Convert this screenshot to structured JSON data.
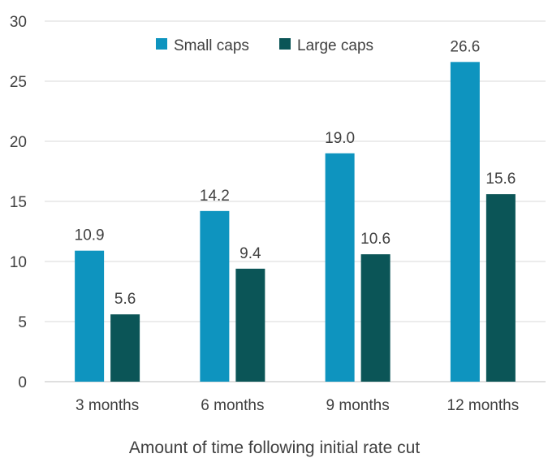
{
  "chart_data": {
    "type": "bar",
    "categories": [
      "3 months",
      "6 months",
      "9 months",
      "12 months"
    ],
    "series": [
      {
        "name": "Small caps",
        "color": "#0e94bf",
        "values": [
          10.9,
          14.2,
          19.0,
          26.6
        ]
      },
      {
        "name": "Large caps",
        "color": "#0b5557",
        "values": [
          5.6,
          9.4,
          10.6,
          15.6
        ]
      }
    ],
    "xlabel": "Amount of time following initial rate cut",
    "ylabel": "",
    "ylim": [
      0,
      30
    ],
    "yticks": [
      0,
      5,
      10,
      15,
      20,
      25,
      30
    ],
    "grid": true,
    "legend_position": "top-center",
    "value_format_decimals": 1
  }
}
